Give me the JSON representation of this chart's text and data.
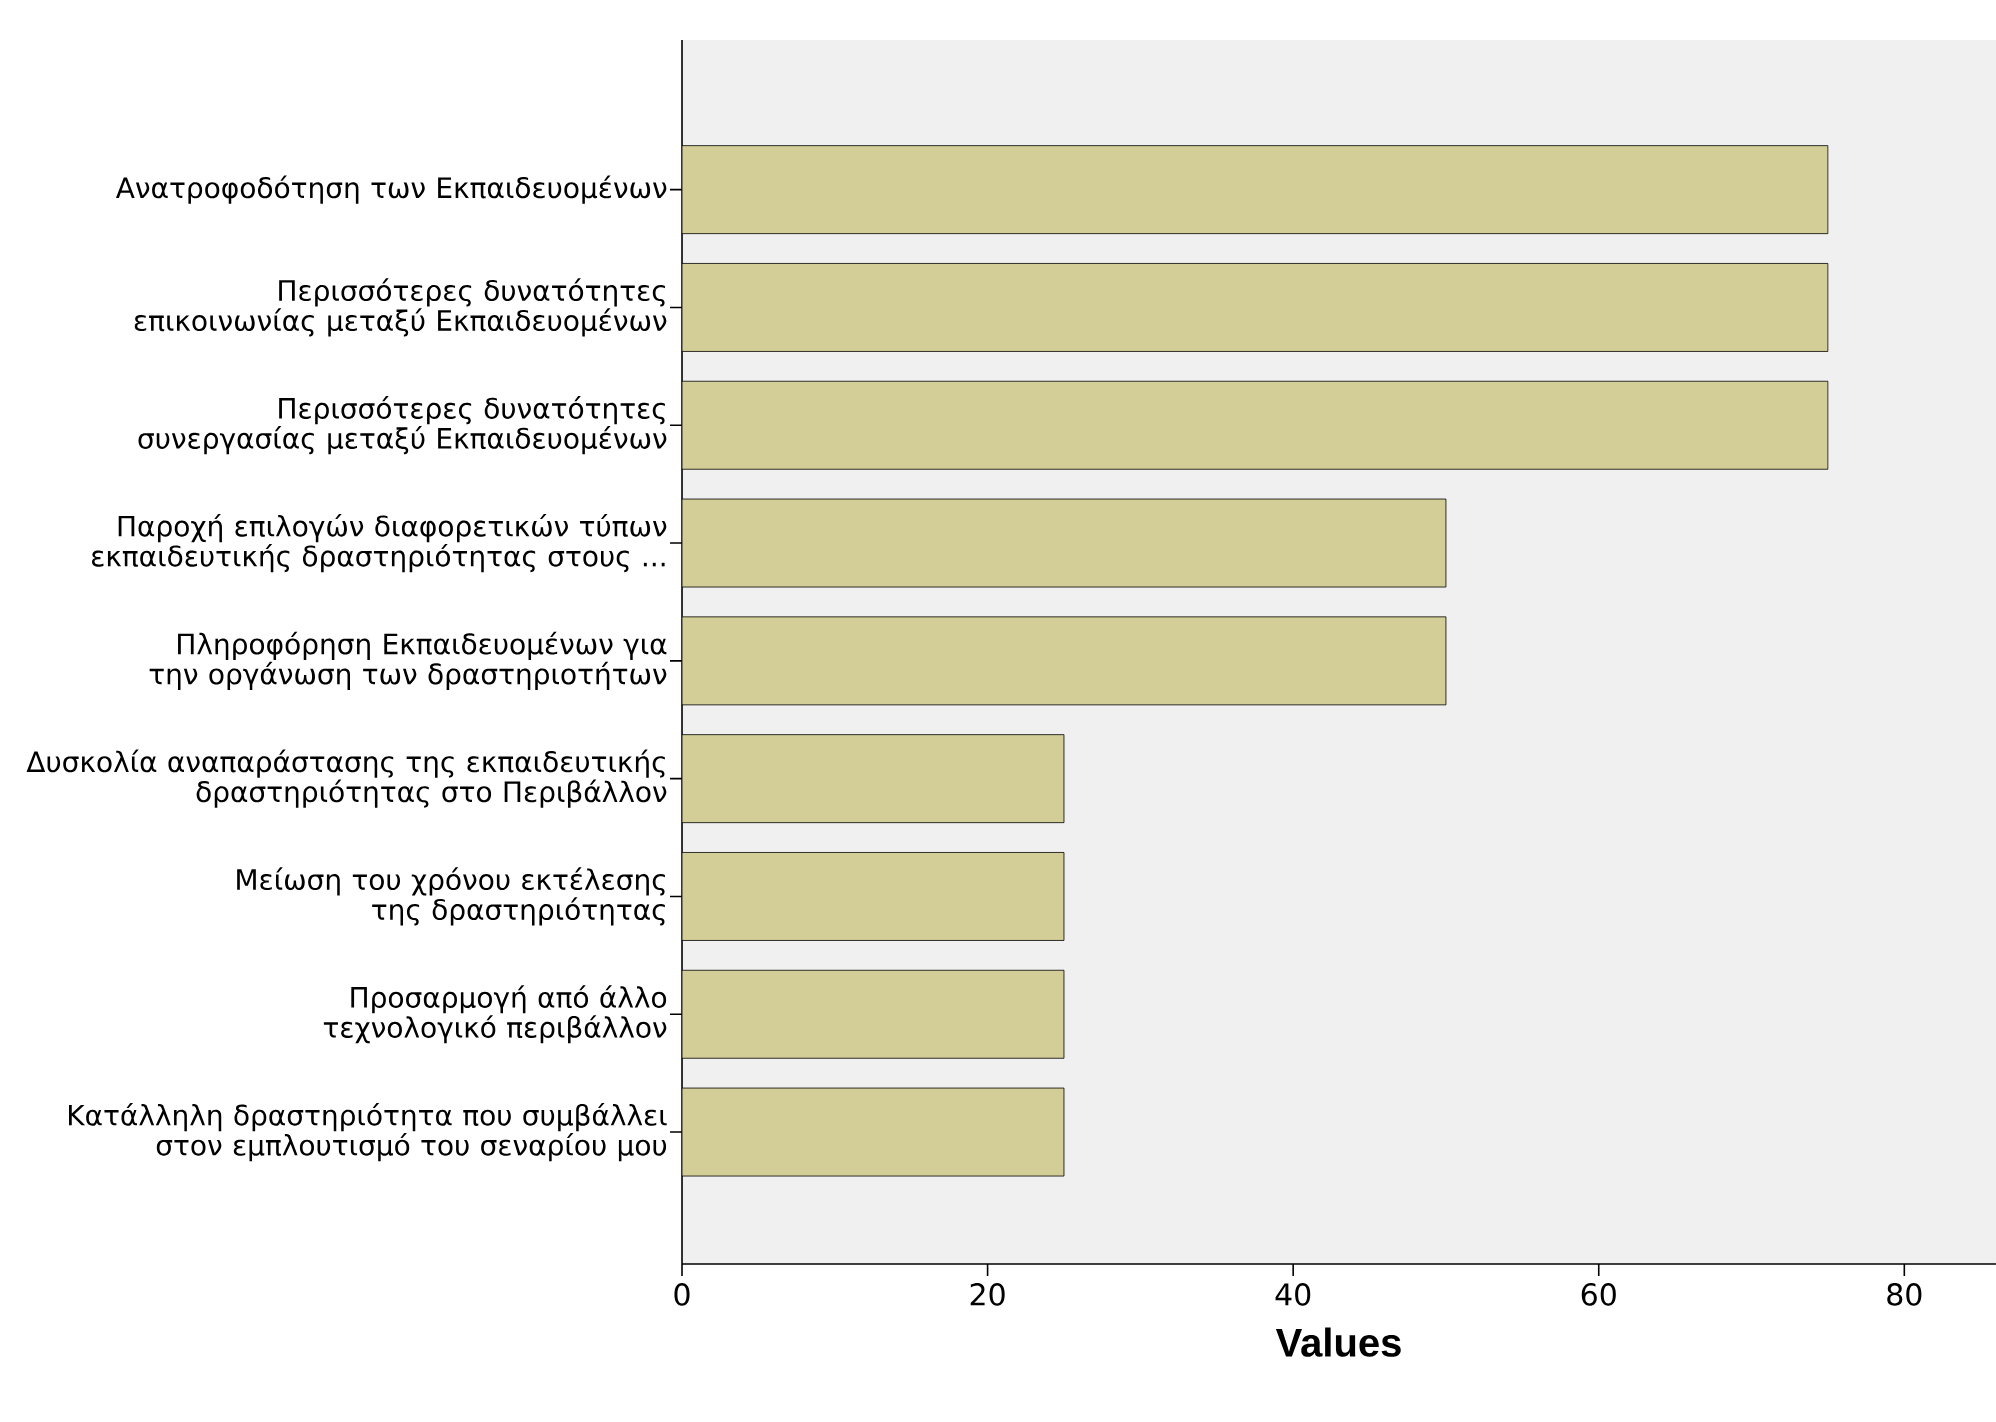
{
  "chart_data": {
    "type": "bar",
    "orientation": "horizontal",
    "categories": [
      "Ανατροφοδότηση των Εκπαιδευομένων",
      "Περισσότερες δυνατότητες επικοινωνίας μεταξύ Εκπαιδευομένων",
      "Περισσότερες δυνατότητες συνεργασίας μεταξύ Εκπαιδευομένων",
      "Παροχή επιλογών  διαφορετικών τύπων εκπαιδευτικής δραστηριότητας στους ...",
      "Πληροφόρηση Εκπαιδευομένων για την οργάνωση των δραστηριοτήτων",
      "Δυσκολία αναπαράστασης της εκπαιδευτικής δραστηριότητας στο Περιβάλλον",
      "Μείωση του χρόνου εκτέλεσης της δραστηριότητας",
      "Προσαρμογή από άλλο τεχνολογικό περιβάλλον",
      "Κατάλληλη δραστηριότητα που συμβάλλει στον εμπλουτισμό του σεναρίου μου"
    ],
    "values": [
      75,
      75,
      75,
      50,
      50,
      25,
      25,
      25,
      25
    ],
    "color": "#d3ce97",
    "xlim": [
      0,
      86
    ],
    "xticks": [
      0,
      20,
      40,
      60,
      80
    ],
    "xlabel": "Values"
  }
}
